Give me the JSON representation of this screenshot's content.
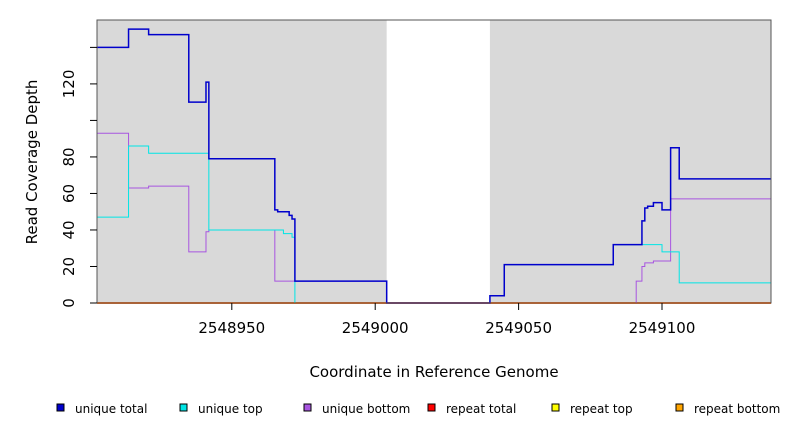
{
  "chart_data": {
    "type": "line",
    "title": "",
    "xlabel": "Coordinate in Reference Genome",
    "ylabel": "Read Coverage Depth",
    "xlim": [
      2548903,
      2549138
    ],
    "ylim": [
      0,
      155
    ],
    "x_ticks": [
      {
        "value": 2548950,
        "label": "2548950"
      },
      {
        "value": 2549000,
        "label": "2549000"
      },
      {
        "value": 2549050,
        "label": "2549050"
      },
      {
        "value": 2549100,
        "label": "2549100"
      }
    ],
    "y_ticks": [
      {
        "value": 0,
        "label": "0"
      },
      {
        "value": 20,
        "label": "20"
      },
      {
        "value": 40,
        "label": "40"
      },
      {
        "value": 60,
        "label": "60"
      },
      {
        "value": 80,
        "label": "80"
      },
      {
        "value": 100,
        "label": ""
      },
      {
        "value": 120,
        "label": "120"
      },
      {
        "value": 140,
        "label": ""
      }
    ],
    "shaded_regions": [
      {
        "x_start": 2548903,
        "x_end": 2549004
      },
      {
        "x_start": 2549040,
        "x_end": 2549138
      }
    ],
    "legend_position": "bottom",
    "series": [
      {
        "name": "unique total",
        "color": "#0000cc",
        "x": [
          2548903,
          2548914,
          2548921,
          2548935,
          2548941,
          2548942,
          2548965,
          2548966,
          2548968,
          2548970,
          2548971,
          2548972,
          2549004,
          2549040,
          2549045,
          2549083,
          2549093,
          2549094,
          2549095,
          2549097,
          2549100,
          2549103,
          2549106,
          2549138
        ],
        "y": [
          140,
          150,
          147,
          110,
          121,
          79,
          51,
          50,
          50,
          48,
          46,
          12,
          0,
          4,
          21,
          32,
          45,
          52,
          53,
          55,
          51,
          85,
          68,
          68
        ]
      },
      {
        "name": "unique top",
        "color": "#00e5e5",
        "x": [
          2548903,
          2548914,
          2548921,
          2548942,
          2548968,
          2548971,
          2548972,
          2549004,
          2549040,
          2549045,
          2549083,
          2549093,
          2549100,
          2549106,
          2549138
        ],
        "y": [
          47,
          86,
          82,
          40,
          38,
          36,
          0,
          0,
          4,
          21,
          32,
          32,
          28,
          11,
          11
        ],
        "style": "steps"
      },
      {
        "name": "unique bottom",
        "color": "#a855e0",
        "x": [
          2548903,
          2548914,
          2548921,
          2548935,
          2548941,
          2548942,
          2548965,
          2548972,
          2549004,
          2549091,
          2549093,
          2549094,
          2549095,
          2549097,
          2549103,
          2549138
        ],
        "y": [
          93,
          63,
          64,
          28,
          39,
          40,
          12,
          12,
          0,
          12,
          20,
          22,
          22,
          23,
          57,
          57
        ]
      },
      {
        "name": "repeat total",
        "color": "#ff0000",
        "x": [
          2548903,
          2549138
        ],
        "y": [
          0,
          0
        ]
      },
      {
        "name": "repeat top",
        "color": "#ffff00",
        "x": [
          2548903,
          2549138
        ],
        "y": [
          0,
          0
        ]
      },
      {
        "name": "repeat bottom",
        "color": "#ffa500",
        "x": [
          2548903,
          2549138
        ],
        "y": [
          0,
          0
        ]
      }
    ]
  }
}
